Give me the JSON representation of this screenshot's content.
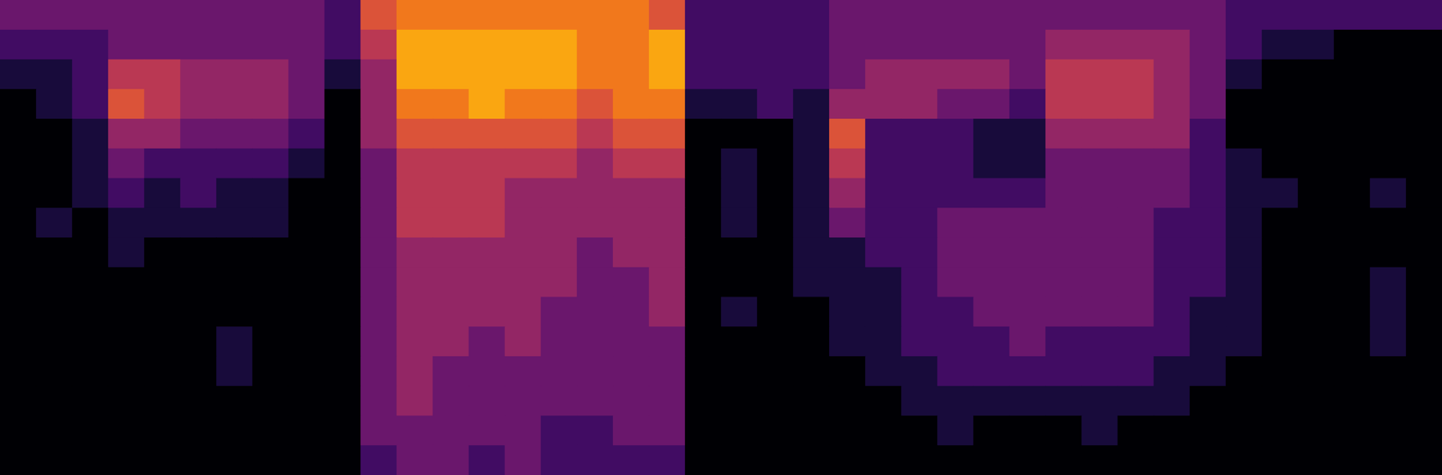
{
  "chart_data": {
    "type": "heatmap",
    "color": "inferno",
    "tick_labels": false,
    "xlim": [
      0,
      40
    ],
    "ylim": [
      0,
      16
    ],
    "zlim": [
      0,
      10
    ],
    "cells": [
      [
        3,
        3,
        3,
        3,
        3,
        3,
        3,
        3,
        3,
        2,
        6,
        7,
        7,
        7,
        7,
        7,
        7,
        7,
        6,
        2,
        2,
        2,
        2,
        3,
        3,
        3,
        3,
        3,
        3,
        3,
        3,
        3,
        3,
        3,
        2,
        2,
        2,
        2,
        2,
        2
      ],
      [
        2,
        2,
        2,
        3,
        3,
        3,
        3,
        3,
        3,
        2,
        5,
        8,
        8,
        8,
        8,
        8,
        7,
        7,
        8,
        2,
        2,
        2,
        2,
        3,
        3,
        3,
        3,
        3,
        3,
        4,
        4,
        4,
        4,
        3,
        2,
        1,
        1,
        0,
        0,
        0
      ],
      [
        1,
        1,
        2,
        5,
        5,
        4,
        4,
        4,
        3,
        1,
        4,
        8,
        8,
        8,
        8,
        8,
        7,
        7,
        8,
        2,
        2,
        2,
        2,
        3,
        4,
        4,
        4,
        4,
        3,
        5,
        5,
        5,
        4,
        3,
        1,
        0,
        0,
        0,
        0,
        0
      ],
      [
        0,
        1,
        2,
        6,
        5,
        4,
        4,
        4,
        3,
        0,
        4,
        7,
        7,
        8,
        7,
        7,
        6,
        7,
        7,
        1,
        1,
        2,
        1,
        4,
        4,
        4,
        3,
        3,
        2,
        5,
        5,
        5,
        4,
        3,
        0,
        0,
        0,
        0,
        0,
        0
      ],
      [
        0,
        0,
        1,
        4,
        4,
        3,
        3,
        3,
        2,
        0,
        4,
        6,
        6,
        6,
        6,
        6,
        5,
        6,
        6,
        0,
        0,
        0,
        1,
        6,
        2,
        2,
        2,
        1,
        1,
        4,
        4,
        4,
        4,
        2,
        0,
        0,
        0,
        0,
        0,
        0
      ],
      [
        0,
        0,
        1,
        3,
        2,
        2,
        2,
        2,
        1,
        0,
        3,
        5,
        5,
        5,
        5,
        5,
        4,
        5,
        5,
        0,
        1,
        0,
        1,
        5,
        2,
        2,
        2,
        1,
        1,
        3,
        3,
        3,
        3,
        2,
        1,
        0,
        0,
        0,
        0,
        0
      ],
      [
        0,
        0,
        1,
        2,
        1,
        2,
        1,
        1,
        0,
        0,
        3,
        5,
        5,
        5,
        4,
        4,
        4,
        4,
        4,
        0,
        1,
        0,
        1,
        4,
        2,
        2,
        2,
        2,
        2,
        3,
        3,
        3,
        3,
        2,
        1,
        1,
        0,
        0,
        1,
        0
      ],
      [
        0,
        1,
        0,
        1,
        1,
        1,
        1,
        1,
        0,
        0,
        3,
        5,
        5,
        5,
        4,
        4,
        4,
        4,
        4,
        0,
        1,
        0,
        1,
        3,
        2,
        2,
        3,
        3,
        3,
        3,
        3,
        3,
        2,
        2,
        1,
        0,
        0,
        0,
        0,
        0
      ],
      [
        0,
        0,
        0,
        1,
        0,
        0,
        0,
        0,
        0,
        0,
        3,
        4,
        4,
        4,
        4,
        4,
        3,
        4,
        4,
        0,
        0,
        0,
        1,
        1,
        2,
        2,
        3,
        3,
        3,
        3,
        3,
        3,
        2,
        2,
        1,
        0,
        0,
        0,
        0,
        0
      ],
      [
        0,
        0,
        0,
        0,
        0,
        0,
        0,
        0,
        0,
        0,
        3,
        4,
        4,
        4,
        4,
        4,
        3,
        3,
        4,
        0,
        0,
        0,
        1,
        1,
        1,
        2,
        3,
        3,
        3,
        3,
        3,
        3,
        2,
        2,
        1,
        0,
        0,
        0,
        1,
        0
      ],
      [
        0,
        0,
        0,
        0,
        0,
        0,
        0,
        0,
        0,
        0,
        3,
        4,
        4,
        4,
        4,
        3,
        3,
        3,
        4,
        0,
        1,
        0,
        0,
        1,
        1,
        2,
        2,
        3,
        3,
        3,
        3,
        3,
        2,
        1,
        1,
        0,
        0,
        0,
        1,
        0
      ],
      [
        0,
        0,
        0,
        0,
        0,
        0,
        1,
        0,
        0,
        0,
        3,
        4,
        4,
        3,
        4,
        3,
        3,
        3,
        3,
        0,
        0,
        0,
        0,
        1,
        1,
        2,
        2,
        2,
        3,
        2,
        2,
        2,
        2,
        1,
        1,
        0,
        0,
        0,
        1,
        0
      ],
      [
        0,
        0,
        0,
        0,
        0,
        0,
        1,
        0,
        0,
        0,
        3,
        4,
        3,
        3,
        3,
        3,
        3,
        3,
        3,
        0,
        0,
        0,
        0,
        0,
        1,
        1,
        2,
        2,
        2,
        2,
        2,
        2,
        1,
        1,
        0,
        0,
        0,
        0,
        0,
        0
      ],
      [
        0,
        0,
        0,
        0,
        0,
        0,
        0,
        0,
        0,
        0,
        3,
        4,
        3,
        3,
        3,
        3,
        3,
        3,
        3,
        0,
        0,
        0,
        0,
        0,
        0,
        1,
        1,
        1,
        1,
        1,
        1,
        1,
        1,
        0,
        0,
        0,
        0,
        0,
        0,
        0
      ],
      [
        0,
        0,
        0,
        0,
        0,
        0,
        0,
        0,
        0,
        0,
        3,
        3,
        3,
        3,
        3,
        2,
        2,
        3,
        3,
        0,
        0,
        0,
        0,
        0,
        0,
        0,
        1,
        0,
        0,
        0,
        1,
        0,
        0,
        0,
        0,
        0,
        0,
        0,
        0,
        0
      ],
      [
        0,
        0,
        0,
        0,
        0,
        0,
        0,
        0,
        0,
        0,
        2,
        3,
        3,
        2,
        3,
        2,
        2,
        2,
        2,
        0,
        0,
        0,
        0,
        0,
        0,
        0,
        0,
        0,
        0,
        0,
        0,
        0,
        0,
        0,
        0,
        0,
        0,
        0,
        0,
        0
      ]
    ]
  }
}
